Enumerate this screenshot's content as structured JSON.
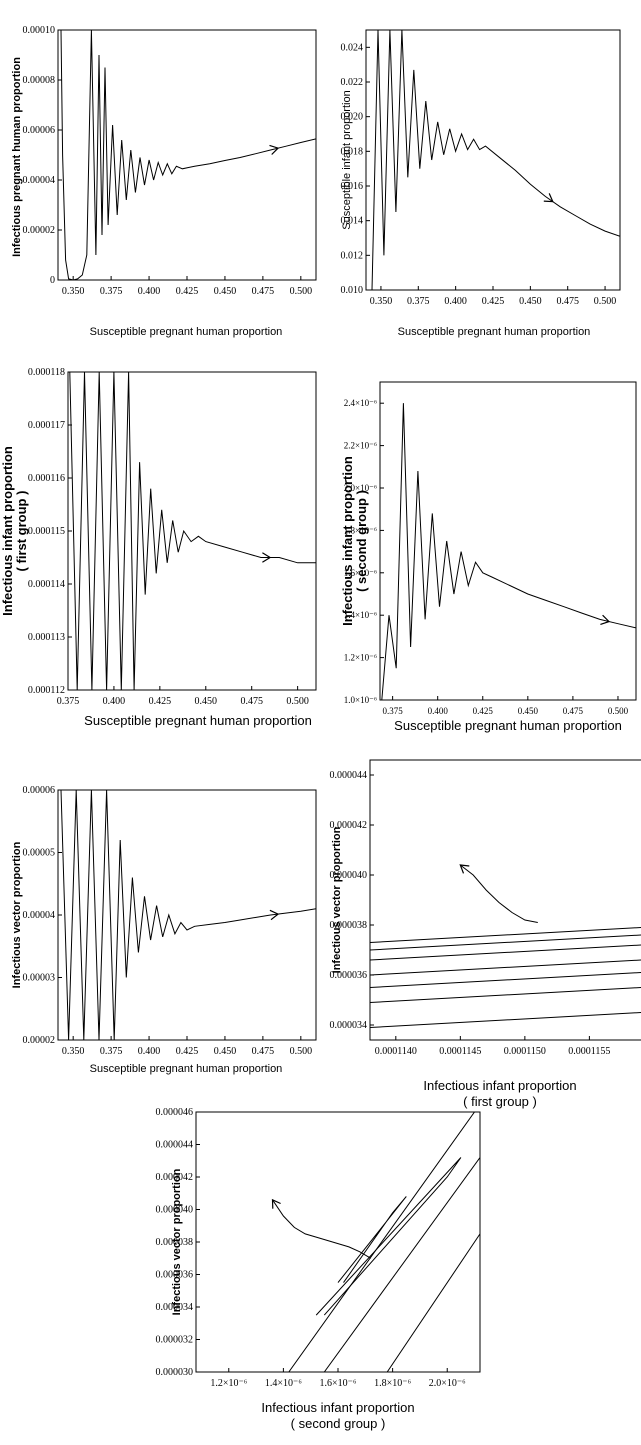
{
  "chart_data": [
    {
      "type": "line",
      "xlabel": "Susceptible pregnant human proportion",
      "ylabel": "Infectious pregnant human proportion",
      "xlim": [
        0.34,
        0.51
      ],
      "ylim": [
        0,
        0.0001
      ],
      "xticks": [
        "0.350",
        "0.375",
        "0.400",
        "0.425",
        "0.450",
        "0.475",
        "0.500"
      ],
      "yticks": [
        "0",
        "0.00002",
        "0.00004",
        "0.00006",
        "0.00008",
        "0.00010"
      ],
      "series": [
        {
          "x": [
            0.342,
            0.343,
            0.345,
            0.347,
            0.35,
            0.353,
            0.356,
            0.359,
            0.362,
            0.365,
            0.367,
            0.369,
            0.371,
            0.373,
            0.376,
            0.379,
            0.382,
            0.385,
            0.388,
            0.391,
            0.394,
            0.397,
            0.4,
            0.403,
            0.406,
            0.409,
            0.412,
            0.415,
            0.418,
            0.422,
            0.426,
            0.43,
            0.44,
            0.45,
            0.46,
            0.47,
            0.48,
            0.49,
            0.5,
            0.51
          ],
          "y": [
            0.0001,
            5e-05,
            8e-06,
            5e-07,
            0.0,
            5e-07,
            2e-06,
            1e-05,
            0.0001,
            1e-05,
            9e-05,
            1.8e-05,
            8.5e-05,
            2.2e-05,
            6.2e-05,
            2.6e-05,
            5.6e-05,
            3.2e-05,
            5.2e-05,
            3.5e-05,
            4.9e-05,
            3.8e-05,
            4.8e-05,
            4e-05,
            4.7e-05,
            4.2e-05,
            4.65e-05,
            4.25e-05,
            4.55e-05,
            4.45e-05,
            4.5e-05,
            4.55e-05,
            4.65e-05,
            4.78e-05,
            4.9e-05,
            5.05e-05,
            5.2e-05,
            5.35e-05,
            5.5e-05,
            5.65e-05
          ]
        }
      ]
    },
    {
      "type": "line",
      "xlabel": "Susceptible pregnant human proportion",
      "ylabel": "Susceptible infant proportion",
      "xlim": [
        0.34,
        0.51
      ],
      "ylim": [
        0.01,
        0.025
      ],
      "xticks": [
        "0.350",
        "0.375",
        "0.400",
        "0.425",
        "0.450",
        "0.475",
        "0.500"
      ],
      "yticks": [
        "0.010",
        "0.012",
        "0.014",
        "0.016",
        "0.018",
        "0.020",
        "0.022",
        "0.024"
      ],
      "series": [
        {
          "x": [
            0.344,
            0.348,
            0.352,
            0.356,
            0.36,
            0.364,
            0.368,
            0.372,
            0.376,
            0.38,
            0.384,
            0.388,
            0.392,
            0.396,
            0.4,
            0.404,
            0.408,
            0.412,
            0.416,
            0.42,
            0.43,
            0.44,
            0.45,
            0.46,
            0.47,
            0.48,
            0.49,
            0.5,
            0.51
          ],
          "y": [
            0.01,
            0.025,
            0.012,
            0.025,
            0.0145,
            0.025,
            0.0165,
            0.0227,
            0.017,
            0.0209,
            0.0175,
            0.0197,
            0.0178,
            0.0193,
            0.018,
            0.019,
            0.0181,
            0.0187,
            0.0181,
            0.0183,
            0.0176,
            0.0169,
            0.0161,
            0.0154,
            0.0148,
            0.0143,
            0.0138,
            0.0134,
            0.0131
          ]
        }
      ]
    },
    {
      "type": "line",
      "xlabel": "Susceptible pregnant human proportion",
      "ylabel": "Infectious infant proportion ( first group )",
      "xlim": [
        0.375,
        0.51
      ],
      "ylim": [
        0.000112,
        0.000118
      ],
      "xticks": [
        "0.375",
        "0.400",
        "0.425",
        "0.450",
        "0.475",
        "0.500"
      ],
      "yticks": [
        "0.000112",
        "0.000113",
        "0.000114",
        "0.000115",
        "0.000116",
        "0.000117",
        "0.000118"
      ],
      "series": [
        {
          "x": [
            0.376,
            0.38,
            0.384,
            0.388,
            0.392,
            0.396,
            0.4,
            0.404,
            0.408,
            0.411,
            0.414,
            0.417,
            0.42,
            0.423,
            0.426,
            0.429,
            0.432,
            0.435,
            0.438,
            0.442,
            0.446,
            0.45,
            0.46,
            0.47,
            0.48,
            0.49,
            0.5,
            0.51
          ],
          "y": [
            0.000118,
            0.000112,
            0.000118,
            0.000112,
            0.000118,
            0.000112,
            0.000118,
            0.000112,
            0.000118,
            0.000112,
            0.0001163,
            0.0001138,
            0.0001158,
            0.0001142,
            0.0001154,
            0.0001144,
            0.0001152,
            0.0001146,
            0.000115,
            0.0001148,
            0.0001149,
            0.0001148,
            0.0001147,
            0.0001146,
            0.0001145,
            0.0001145,
            0.0001144,
            0.0001144
          ]
        }
      ]
    },
    {
      "type": "line",
      "xlabel": "Susceptible pregnant human proportion",
      "ylabel": "Infectious infant proportion ( second group )",
      "xlim": [
        0.368,
        0.51
      ],
      "ylim": [
        1e-06,
        2.5e-06
      ],
      "xticks": [
        "0.375",
        "0.400",
        "0.425",
        "0.450",
        "0.475",
        "0.500"
      ],
      "yticks": [
        "1.0×10⁻⁶",
        "1.2×10⁻⁶",
        "1.4×10⁻⁶",
        "1.6×10⁻⁶",
        "1.8×10⁻⁶",
        "2.0×10⁻⁶",
        "2.2×10⁻⁶",
        "2.4×10⁻⁶"
      ],
      "series": [
        {
          "x": [
            0.369,
            0.373,
            0.377,
            0.381,
            0.385,
            0.389,
            0.393,
            0.397,
            0.401,
            0.405,
            0.409,
            0.413,
            0.417,
            0.421,
            0.425,
            0.43,
            0.44,
            0.45,
            0.46,
            0.47,
            0.48,
            0.49,
            0.5,
            0.51
          ],
          "y": [
            1e-06,
            1.4e-06,
            1.15e-06,
            2.4e-06,
            1.25e-06,
            2.08e-06,
            1.38e-06,
            1.88e-06,
            1.44e-06,
            1.75e-06,
            1.5e-06,
            1.7e-06,
            1.54e-06,
            1.65e-06,
            1.6e-06,
            1.58e-06,
            1.54e-06,
            1.5e-06,
            1.47e-06,
            1.44e-06,
            1.41e-06,
            1.38e-06,
            1.36e-06,
            1.34e-06
          ]
        }
      ]
    },
    {
      "type": "line",
      "xlabel": "Susceptible pregnant human proportion",
      "ylabel": "Infectious vector proportion",
      "xlim": [
        0.34,
        0.51
      ],
      "ylim": [
        2e-05,
        6e-05
      ],
      "xticks": [
        "0.350",
        "0.375",
        "0.400",
        "0.425",
        "0.450",
        "0.475",
        "0.500"
      ],
      "yticks": [
        "0.00002",
        "0.00003",
        "0.00004",
        "0.00005",
        "0.00006"
      ],
      "series": [
        {
          "x": [
            0.342,
            0.347,
            0.352,
            0.357,
            0.362,
            0.367,
            0.372,
            0.377,
            0.381,
            0.385,
            0.389,
            0.393,
            0.397,
            0.401,
            0.405,
            0.409,
            0.413,
            0.417,
            0.421,
            0.425,
            0.43,
            0.44,
            0.45,
            0.46,
            0.47,
            0.48,
            0.49,
            0.5,
            0.51
          ],
          "y": [
            6e-05,
            2e-05,
            6e-05,
            2e-05,
            6e-05,
            2e-05,
            6e-05,
            2e-05,
            5.2e-05,
            3e-05,
            4.6e-05,
            3.4e-05,
            4.3e-05,
            3.6e-05,
            4.15e-05,
            3.65e-05,
            4e-05,
            3.7e-05,
            3.88e-05,
            3.76e-05,
            3.82e-05,
            3.85e-05,
            3.88e-05,
            3.92e-05,
            3.96e-05,
            4e-05,
            4.03e-05,
            4.06e-05,
            4.1e-05
          ]
        }
      ]
    },
    {
      "type": "line",
      "xlabel": "Infectious infant proportion ( first group )",
      "ylabel": "Infectious vector proportion",
      "xlim": [
        0.0001138,
        0.0001159
      ],
      "ylim": [
        3.34e-05,
        4.46e-05
      ],
      "xticks": [
        "0.0001140",
        "0.0001145",
        "0.0001150",
        "0.0001155"
      ],
      "yticks": [
        "0.000034",
        "0.000036",
        "0.000038",
        "0.000040",
        "0.000042",
        "0.000044"
      ],
      "series": [
        {
          "x": [
            0.0001138,
            0.0001159
          ],
          "y": [
            3.39e-05,
            3.45e-05
          ]
        },
        {
          "x": [
            0.0001138,
            0.0001159
          ],
          "y": [
            3.49e-05,
            3.55e-05
          ]
        },
        {
          "x": [
            0.0001138,
            0.0001159
          ],
          "y": [
            3.55e-05,
            3.61e-05
          ]
        },
        {
          "x": [
            0.0001138,
            0.0001159
          ],
          "y": [
            3.6e-05,
            3.66e-05
          ]
        },
        {
          "x": [
            0.0001138,
            0.0001159
          ],
          "y": [
            3.66e-05,
            3.72e-05
          ]
        },
        {
          "x": [
            0.0001138,
            0.0001159
          ],
          "y": [
            3.7e-05,
            3.76e-05
          ]
        },
        {
          "x": [
            0.0001138,
            0.0001159
          ],
          "y": [
            3.73e-05,
            3.79e-05
          ]
        },
        {
          "x": [
            0.0001145,
            0.0001146,
            0.0001147,
            0.0001148,
            0.0001149,
            0.000115,
            0.0001151
          ],
          "y": [
            4.04e-05,
            4e-05,
            3.94e-05,
            3.89e-05,
            3.85e-05,
            3.82e-05,
            3.81e-05
          ]
        }
      ]
    },
    {
      "type": "line",
      "xlabel": "Infectious infant proportion ( second group )",
      "ylabel": "Infectious vector proportion",
      "xlim": [
        1.08e-06,
        2.12e-06
      ],
      "ylim": [
        3e-05,
        4.6e-05
      ],
      "xticks": [
        "1.2×10⁻⁶",
        "1.4×10⁻⁶",
        "1.6×10⁻⁶",
        "1.8×10⁻⁶",
        "2.0×10⁻⁶"
      ],
      "yticks": [
        "0.000030",
        "0.000032",
        "0.000034",
        "0.000036",
        "0.000038",
        "0.000040",
        "0.000042",
        "0.000044",
        "0.000046"
      ],
      "series": [
        {
          "x": [
            1.42e-06,
            2.1e-06
          ],
          "y": [
            3e-05,
            4.6e-05
          ]
        },
        {
          "x": [
            1.55e-06,
            2.12e-06
          ],
          "y": [
            3e-05,
            4.32e-05
          ]
        },
        {
          "x": [
            1.78e-06,
            2.12e-06
          ],
          "y": [
            3e-05,
            3.85e-05
          ]
        },
        {
          "x": [
            1.52e-06,
            2.05e-06,
            2e-06,
            1.55e-06
          ],
          "y": [
            3.35e-05,
            4.32e-05,
            4.2e-05,
            3.35e-05
          ]
        },
        {
          "x": [
            1.6e-06,
            1.85e-06,
            1.8e-06,
            1.62e-06
          ],
          "y": [
            3.55e-05,
            4.08e-05,
            3.98e-05,
            3.55e-05
          ]
        },
        {
          "x": [
            1.36e-06,
            1.4e-06,
            1.44e-06,
            1.48e-06,
            1.52e-06,
            1.56e-06,
            1.6e-06,
            1.64e-06,
            1.68e-06,
            1.72e-06
          ],
          "y": [
            4.06e-05,
            3.96e-05,
            3.89e-05,
            3.85e-05,
            3.83e-05,
            3.81e-05,
            3.79e-05,
            3.77e-05,
            3.74e-05,
            3.7e-05
          ]
        }
      ]
    }
  ]
}
